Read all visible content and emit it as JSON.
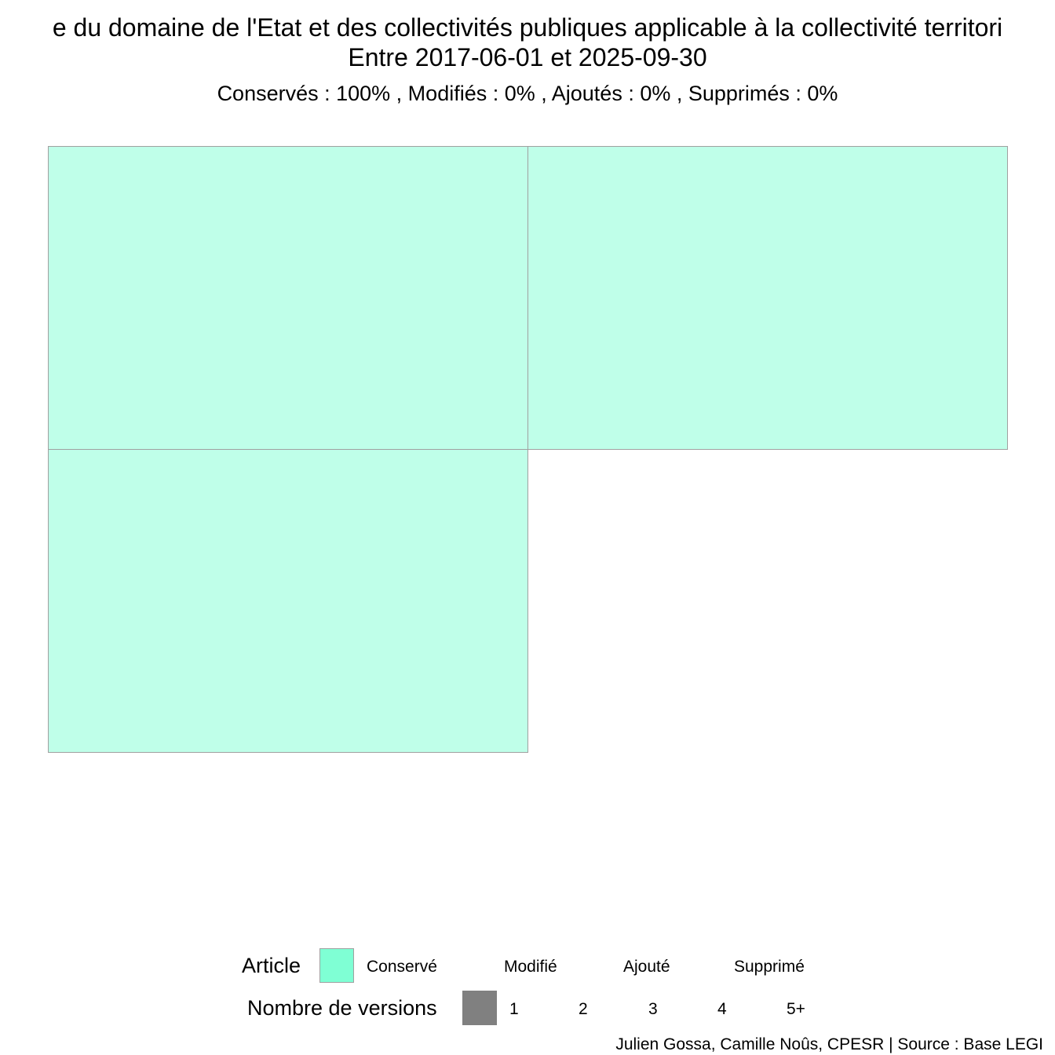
{
  "title": {
    "line1": "e du domaine de l'Etat et des collectivités publiques applicable à la collectivité territori",
    "line2": "Entre 2017-06-01 et 2025-09-30"
  },
  "subtitle": "Conservés :  100% , Modifiés :  0% , Ajoutés :  0% , Supprimés :  0%",
  "chart_data": {
    "type": "treemap",
    "arrangement": "grid-2-columns",
    "tiles": [
      {
        "status": "Conservé",
        "versions": 1,
        "value": 1
      },
      {
        "status": "Conservé",
        "versions": 1,
        "value": 1
      },
      {
        "status": "Conservé",
        "versions": 1,
        "value": 1
      }
    ],
    "status_colors": {
      "Conservé": "#7fffd4",
      "Modifié": "#ffffff",
      "Ajouté": "#ffffff",
      "Supprimé": "#ffffff"
    },
    "tile_fill": "#bfffe9",
    "tile_border": "#a0a0a0"
  },
  "legend": {
    "article": {
      "title": "Article",
      "items": [
        "Conservé",
        "Modifié",
        "Ajouté",
        "Supprimé"
      ],
      "key_color": "#7fffd4"
    },
    "versions": {
      "title": "Nombre de versions",
      "items": [
        "1",
        "2",
        "3",
        "4",
        "5+"
      ],
      "key_color": "#808080"
    }
  },
  "caption": "Julien Gossa, Camille Noûs, CPESR  |  Source : Base LEGI"
}
